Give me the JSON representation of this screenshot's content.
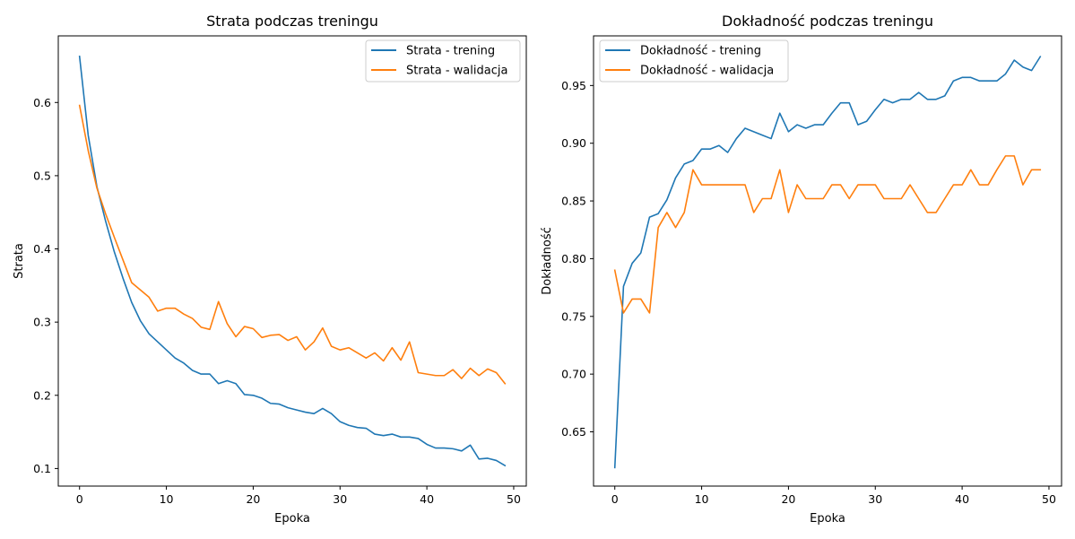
{
  "figure": {
    "background": "#ffffff"
  },
  "chart_data": [
    {
      "type": "line",
      "title": "Strata podczas treningu",
      "xlabel": "Epoka",
      "ylabel": "Strata",
      "xlim": [
        -2.45,
        51.45
      ],
      "ylim": [
        0.076,
        0.691
      ],
      "xticks": [
        0,
        10,
        20,
        30,
        40,
        50
      ],
      "yticks": [
        0.1,
        0.2,
        0.3,
        0.4,
        0.5,
        0.6
      ],
      "ytick_labels": [
        "0.1",
        "0.2",
        "0.3",
        "0.4",
        "0.5",
        "0.6"
      ],
      "grid": false,
      "legend_position": "top-right",
      "x": [
        0,
        1,
        2,
        3,
        4,
        5,
        6,
        7,
        8,
        9,
        10,
        11,
        12,
        13,
        14,
        15,
        16,
        17,
        18,
        19,
        20,
        21,
        22,
        23,
        24,
        25,
        26,
        27,
        28,
        29,
        30,
        31,
        32,
        33,
        34,
        35,
        36,
        37,
        38,
        39,
        40,
        41,
        42,
        43,
        44,
        45,
        46,
        47,
        48,
        49
      ],
      "series": [
        {
          "name": "Strata - trening",
          "color": "#1f77b4",
          "values": [
            0.663,
            0.555,
            0.485,
            0.438,
            0.396,
            0.36,
            0.327,
            0.302,
            0.284,
            0.273,
            0.262,
            0.251,
            0.244,
            0.234,
            0.229,
            0.229,
            0.216,
            0.22,
            0.216,
            0.201,
            0.2,
            0.196,
            0.189,
            0.188,
            0.183,
            0.18,
            0.177,
            0.175,
            0.182,
            0.175,
            0.164,
            0.159,
            0.156,
            0.155,
            0.147,
            0.145,
            0.147,
            0.143,
            0.143,
            0.141,
            0.133,
            0.128,
            0.128,
            0.127,
            0.124,
            0.132,
            0.113,
            0.114,
            0.111,
            0.104
          ]
        },
        {
          "name": "Strata - walidacja",
          "color": "#ff7f0e",
          "values": [
            0.596,
            0.534,
            0.483,
            0.448,
            0.416,
            0.385,
            0.354,
            0.344,
            0.334,
            0.315,
            0.319,
            0.319,
            0.311,
            0.305,
            0.293,
            0.29,
            0.328,
            0.298,
            0.28,
            0.294,
            0.291,
            0.279,
            0.282,
            0.283,
            0.275,
            0.28,
            0.262,
            0.273,
            0.292,
            0.267,
            0.262,
            0.265,
            0.258,
            0.251,
            0.258,
            0.247,
            0.265,
            0.248,
            0.273,
            0.231,
            0.229,
            0.227,
            0.227,
            0.235,
            0.223,
            0.237,
            0.227,
            0.236,
            0.231,
            0.216
          ]
        }
      ]
    },
    {
      "type": "line",
      "title": "Dokładność podczas treningu",
      "xlabel": "Epoka",
      "ylabel": "Dokładność",
      "xlim": [
        -2.45,
        51.45
      ],
      "ylim": [
        0.603,
        0.993
      ],
      "xticks": [
        0,
        10,
        20,
        30,
        40,
        50
      ],
      "yticks": [
        0.65,
        0.7,
        0.75,
        0.8,
        0.85,
        0.9,
        0.95
      ],
      "ytick_labels": [
        "0.65",
        "0.70",
        "0.75",
        "0.80",
        "0.85",
        "0.90",
        "0.95"
      ],
      "grid": false,
      "legend_position": "top-left",
      "x": [
        0,
        1,
        2,
        3,
        4,
        5,
        6,
        7,
        8,
        9,
        10,
        11,
        12,
        13,
        14,
        15,
        16,
        17,
        18,
        19,
        20,
        21,
        22,
        23,
        24,
        25,
        26,
        27,
        28,
        29,
        30,
        31,
        32,
        33,
        34,
        35,
        36,
        37,
        38,
        39,
        40,
        41,
        42,
        43,
        44,
        45,
        46,
        47,
        48,
        49
      ],
      "series": [
        {
          "name": "Dokładność - trening",
          "color": "#1f77b4",
          "values": [
            0.619,
            0.776,
            0.796,
            0.805,
            0.836,
            0.839,
            0.851,
            0.87,
            0.882,
            0.885,
            0.895,
            0.895,
            0.898,
            0.892,
            0.904,
            0.913,
            0.91,
            0.907,
            0.904,
            0.926,
            0.91,
            0.916,
            0.913,
            0.916,
            0.916,
            0.926,
            0.935,
            0.935,
            0.916,
            0.919,
            0.929,
            0.938,
            0.935,
            0.938,
            0.938,
            0.944,
            0.938,
            0.938,
            0.941,
            0.954,
            0.957,
            0.957,
            0.954,
            0.954,
            0.954,
            0.96,
            0.972,
            0.966,
            0.963,
            0.975
          ]
        },
        {
          "name": "Dokładność - walidacja",
          "color": "#ff7f0e",
          "values": [
            0.79,
            0.753,
            0.765,
            0.765,
            0.753,
            0.827,
            0.84,
            0.827,
            0.84,
            0.877,
            0.864,
            0.864,
            0.864,
            0.864,
            0.864,
            0.864,
            0.84,
            0.852,
            0.852,
            0.877,
            0.84,
            0.864,
            0.852,
            0.852,
            0.852,
            0.864,
            0.864,
            0.852,
            0.864,
            0.864,
            0.864,
            0.852,
            0.852,
            0.852,
            0.864,
            0.852,
            0.84,
            0.84,
            0.852,
            0.864,
            0.864,
            0.877,
            0.864,
            0.864,
            0.877,
            0.889,
            0.889,
            0.864,
            0.877,
            0.877
          ]
        }
      ]
    }
  ]
}
